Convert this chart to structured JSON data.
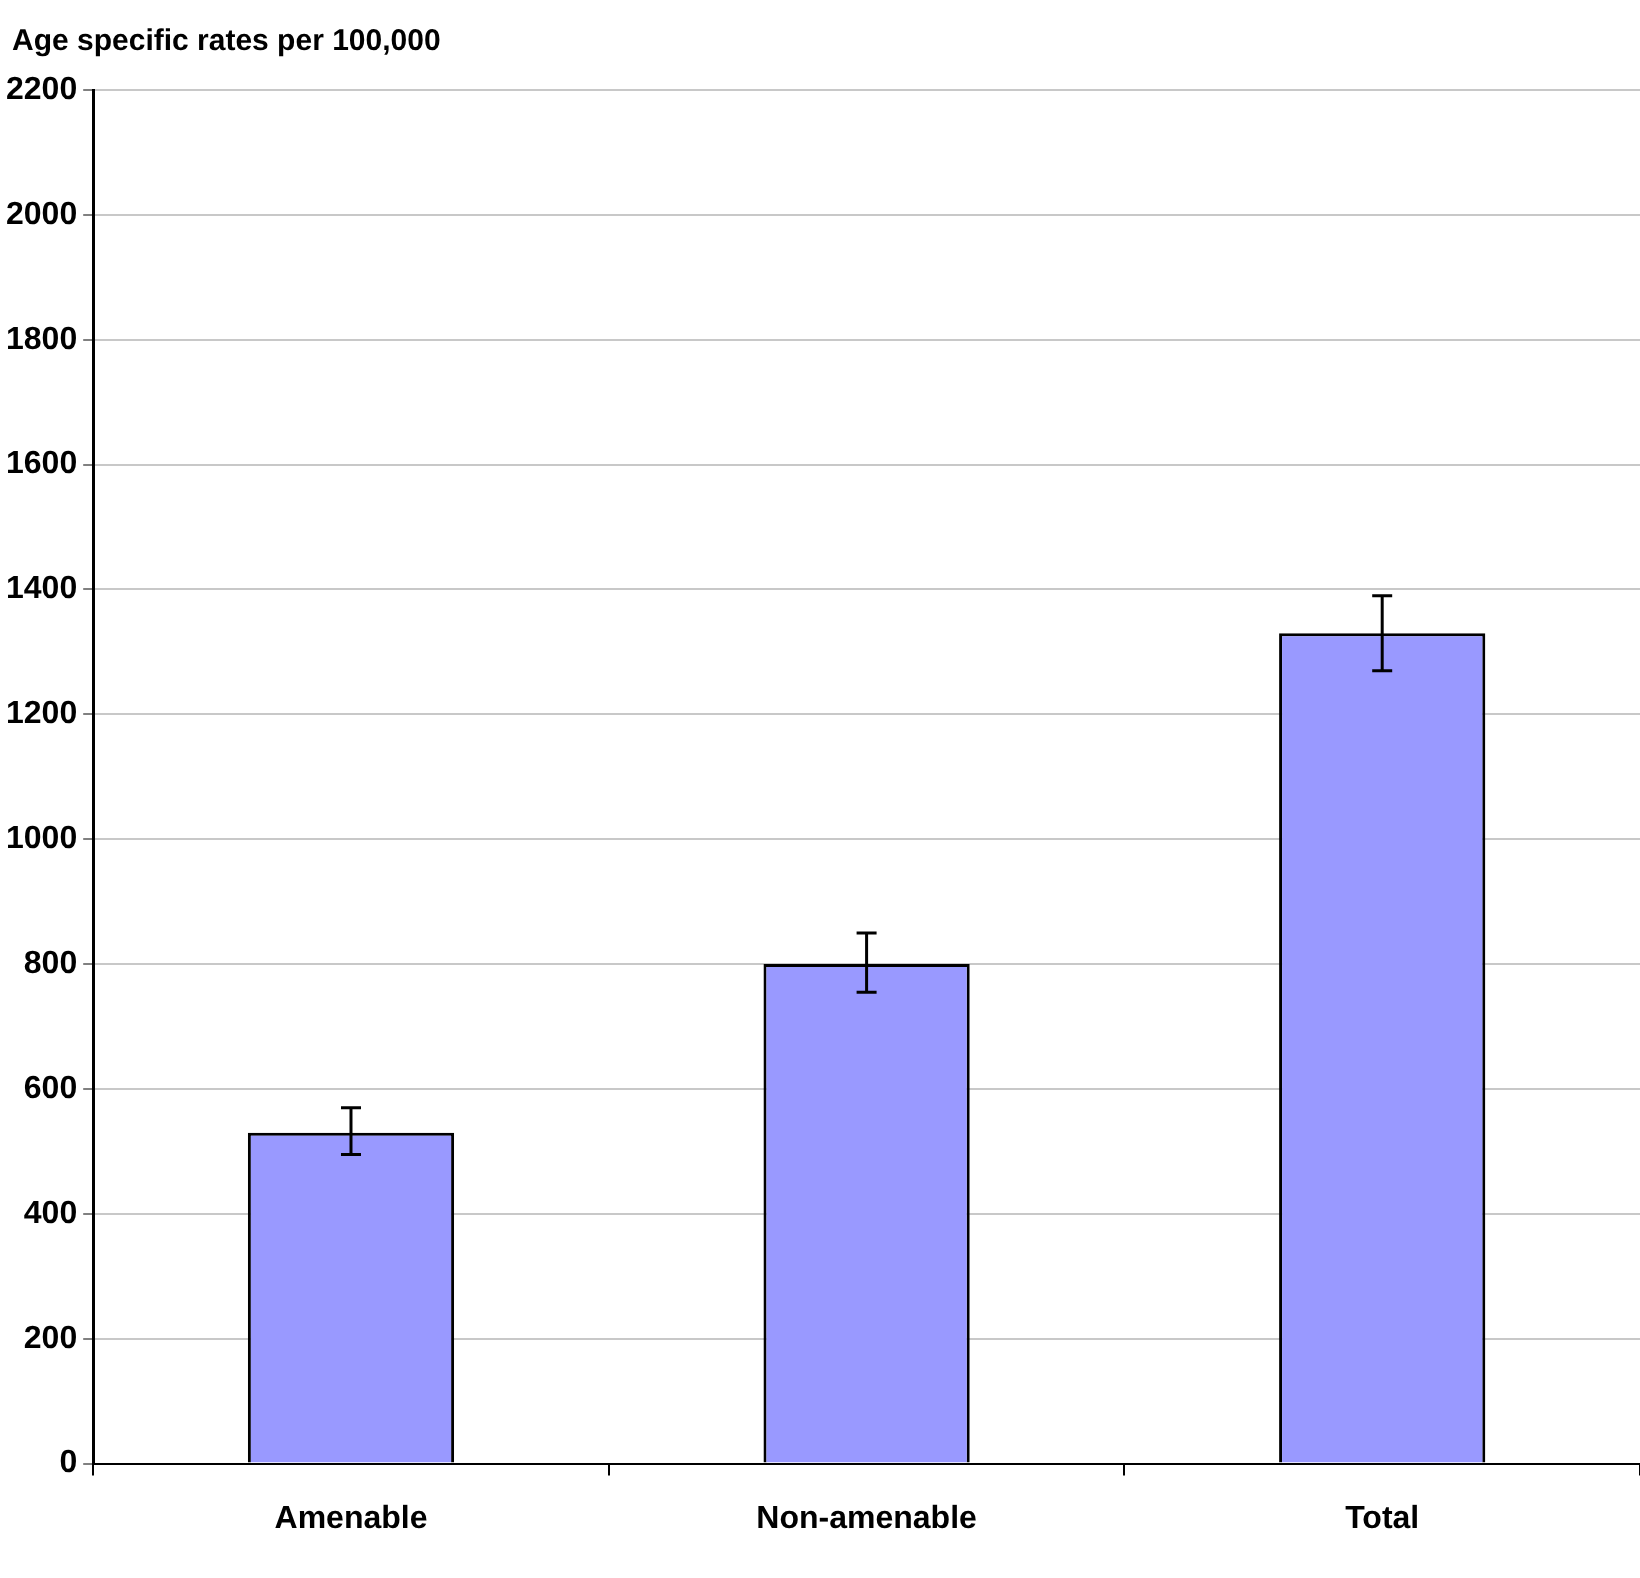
{
  "chart_data": {
    "type": "bar",
    "ylabel": "Age specific rates per 100,000",
    "categories": [
      "Amenable",
      "Non-amenable",
      "Total"
    ],
    "values": [
      530,
      800,
      1330
    ],
    "errors": [
      [
        495,
        570
      ],
      [
        755,
        850
      ],
      [
        1270,
        1390
      ]
    ],
    "color": "#9999ff",
    "ylim": [
      0,
      2200
    ],
    "yticks": [
      0,
      200,
      400,
      600,
      800,
      1000,
      1200,
      1400,
      1600,
      1800,
      2000,
      2200
    ],
    "grid": "y",
    "legend": false
  }
}
